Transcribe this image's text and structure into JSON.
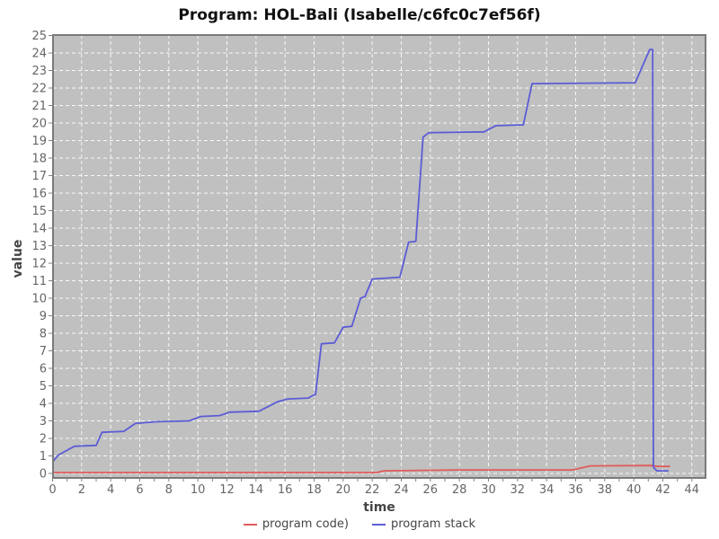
{
  "chart_data": {
    "type": "line",
    "title": "Program: HOL-Bali (Isabelle/c6fc0c7ef56f)",
    "xlabel": "time",
    "ylabel": "value",
    "xlim": [
      0,
      44
    ],
    "ylim": [
      0,
      25
    ],
    "x_ticks": [
      0,
      2,
      4,
      6,
      8,
      10,
      12,
      14,
      16,
      18,
      20,
      22,
      24,
      26,
      28,
      30,
      32,
      34,
      36,
      38,
      40,
      42,
      44
    ],
    "y_ticks": [
      0,
      1,
      2,
      3,
      4,
      5,
      6,
      7,
      8,
      9,
      10,
      11,
      12,
      13,
      14,
      15,
      16,
      17,
      18,
      19,
      20,
      21,
      22,
      23,
      24,
      25
    ],
    "grid": true,
    "legend_position": "bottom",
    "colors": {
      "plot_bg": "#c0c0c0",
      "grid": "#ffffff",
      "border": "#7a7a7a",
      "tick": "#808080",
      "tick_label": "#666666",
      "axis_label": "#444444",
      "title": "#111111"
    },
    "series": [
      {
        "name": "program code)",
        "color": "#e05b5b",
        "points": [
          [
            0,
            0.05
          ],
          [
            22.3,
            0.05
          ],
          [
            22.8,
            0.15
          ],
          [
            28.0,
            0.2
          ],
          [
            35.8,
            0.2
          ],
          [
            37.0,
            0.43
          ],
          [
            41.2,
            0.45
          ],
          [
            41.6,
            0.4
          ],
          [
            42.5,
            0.4
          ]
        ]
      },
      {
        "name": "program stack",
        "color": "#5c5cd6",
        "points": [
          [
            0,
            0.65
          ],
          [
            0.4,
            1.05
          ],
          [
            1.5,
            1.55
          ],
          [
            3.0,
            1.6
          ],
          [
            3.4,
            2.35
          ],
          [
            4.9,
            2.4
          ],
          [
            5.7,
            2.85
          ],
          [
            7.1,
            2.95
          ],
          [
            9.4,
            3.0
          ],
          [
            10.2,
            3.25
          ],
          [
            11.5,
            3.3
          ],
          [
            12.2,
            3.5
          ],
          [
            14.2,
            3.55
          ],
          [
            15.5,
            4.1
          ],
          [
            16.2,
            4.25
          ],
          [
            17.6,
            4.3
          ],
          [
            17.9,
            4.45
          ],
          [
            18.1,
            4.5
          ],
          [
            18.5,
            7.4
          ],
          [
            19.4,
            7.45
          ],
          [
            20.0,
            8.35
          ],
          [
            20.6,
            8.4
          ],
          [
            21.2,
            10.0
          ],
          [
            21.5,
            10.1
          ],
          [
            22.0,
            11.1
          ],
          [
            23.9,
            11.2
          ],
          [
            24.5,
            13.2
          ],
          [
            25.0,
            13.25
          ],
          [
            25.5,
            19.2
          ],
          [
            25.9,
            19.45
          ],
          [
            29.7,
            19.5
          ],
          [
            30.5,
            19.85
          ],
          [
            32.4,
            19.9
          ],
          [
            33.0,
            22.25
          ],
          [
            40.1,
            22.3
          ],
          [
            41.1,
            24.2
          ],
          [
            41.3,
            24.2
          ],
          [
            41.35,
            0.35
          ],
          [
            41.6,
            0.15
          ],
          [
            42.4,
            0.15
          ]
        ]
      }
    ]
  }
}
